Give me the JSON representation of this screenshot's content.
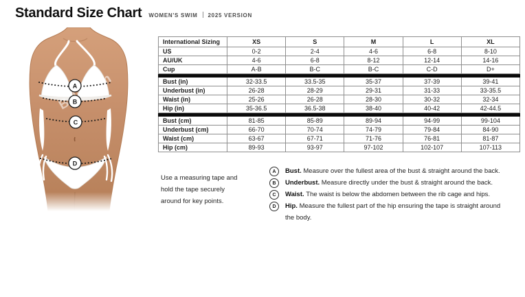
{
  "header": {
    "title": "Standard Size Chart",
    "subtitle_left": "WOMEN'S SWIM",
    "subtitle_right": "2025 VERSION"
  },
  "table": {
    "header": [
      "International Sizing",
      "XS",
      "S",
      "M",
      "L",
      "XL"
    ],
    "groups": [
      {
        "name": "sizing",
        "rows": [
          {
            "label": "US",
            "values": [
              "0-2",
              "2-4",
              "4-6",
              "6-8",
              "8-10"
            ]
          },
          {
            "label": "AU/UK",
            "values": [
              "4-6",
              "6-8",
              "8-12",
              "12-14",
              "14-16"
            ]
          },
          {
            "label": "Cup",
            "values": [
              "A-B",
              "B-C",
              "B-C",
              "C-D",
              "D+"
            ]
          }
        ]
      },
      {
        "name": "inches",
        "rows": [
          {
            "label": "Bust (in)",
            "values": [
              "32-33.5",
              "33.5-35",
              "35-37",
              "37-39",
              "39-41"
            ]
          },
          {
            "label": "Underbust (in)",
            "values": [
              "26-28",
              "28-29",
              "29-31",
              "31-33",
              "33-35.5"
            ]
          },
          {
            "label": "Waist (in)",
            "values": [
              "25-26",
              "26-28",
              "28-30",
              "30-32",
              "32-34"
            ]
          },
          {
            "label": "Hip (in)",
            "values": [
              "35-36.5",
              "36.5-38",
              "38-40",
              "40-42",
              "42-44.5"
            ]
          }
        ]
      },
      {
        "name": "centimeters",
        "rows": [
          {
            "label": "Bust (cm)",
            "values": [
              "81-85",
              "85-89",
              "89-94",
              "94-99",
              "99-104"
            ]
          },
          {
            "label": "Underbust (cm)",
            "values": [
              "66-70",
              "70-74",
              "74-79",
              "79-84",
              "84-90"
            ]
          },
          {
            "label": "Waist (cm)",
            "values": [
              "63-67",
              "67-71",
              "71-76",
              "76-81",
              "81-87"
            ]
          },
          {
            "label": "Hip (cm)",
            "values": [
              "89-93",
              "93-97",
              "97-102",
              "102-107",
              "107-113"
            ]
          }
        ]
      }
    ]
  },
  "figure": {
    "watermark": "BaliSwim",
    "markers": [
      {
        "letter": "A"
      },
      {
        "letter": "B"
      },
      {
        "letter": "C"
      },
      {
        "letter": "D"
      }
    ]
  },
  "instructions": {
    "intro": "Use a measuring tape and hold the tape securely around for key points.",
    "items": [
      {
        "letter": "A",
        "term": "Bust.",
        "text": "Measure over the fullest area of the bust & straight around the back."
      },
      {
        "letter": "B",
        "term": "Underbust.",
        "text": "Measure directly under the bust & straight around the back."
      },
      {
        "letter": "C",
        "term": "Waist.",
        "text": "The waist is below the abdomen between the rib cage and hips."
      },
      {
        "letter": "D",
        "term": "Hip.",
        "text": "Measure the fullest part of the hip ensuring the tape is straight around the body."
      }
    ]
  },
  "colors": {
    "separator_bar": "#0b0b0b",
    "table_border": "#8d8d8d",
    "skin_tone": "#c68f6b",
    "marker_line": "#151515"
  }
}
